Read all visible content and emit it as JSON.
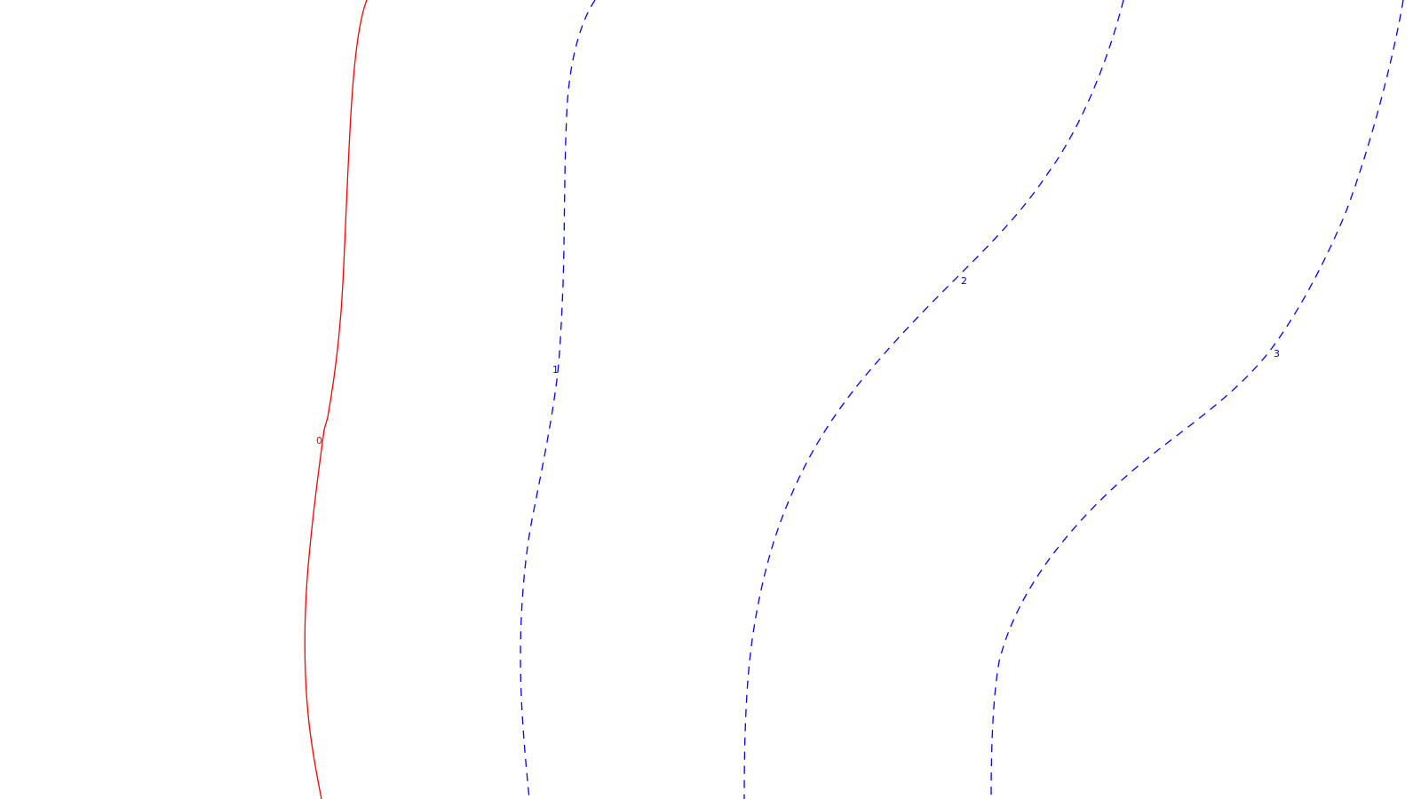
{
  "contours": [
    {
      "label": "0",
      "color": "#ff0000",
      "line_style": "solid"
    },
    {
      "label": "1",
      "color": "#0000ff",
      "line_style": "dashed"
    },
    {
      "label": "2",
      "color": "#0000ff",
      "line_style": "dashed"
    },
    {
      "label": "3",
      "color": "#0000ff",
      "line_style": "dashed"
    }
  ]
}
